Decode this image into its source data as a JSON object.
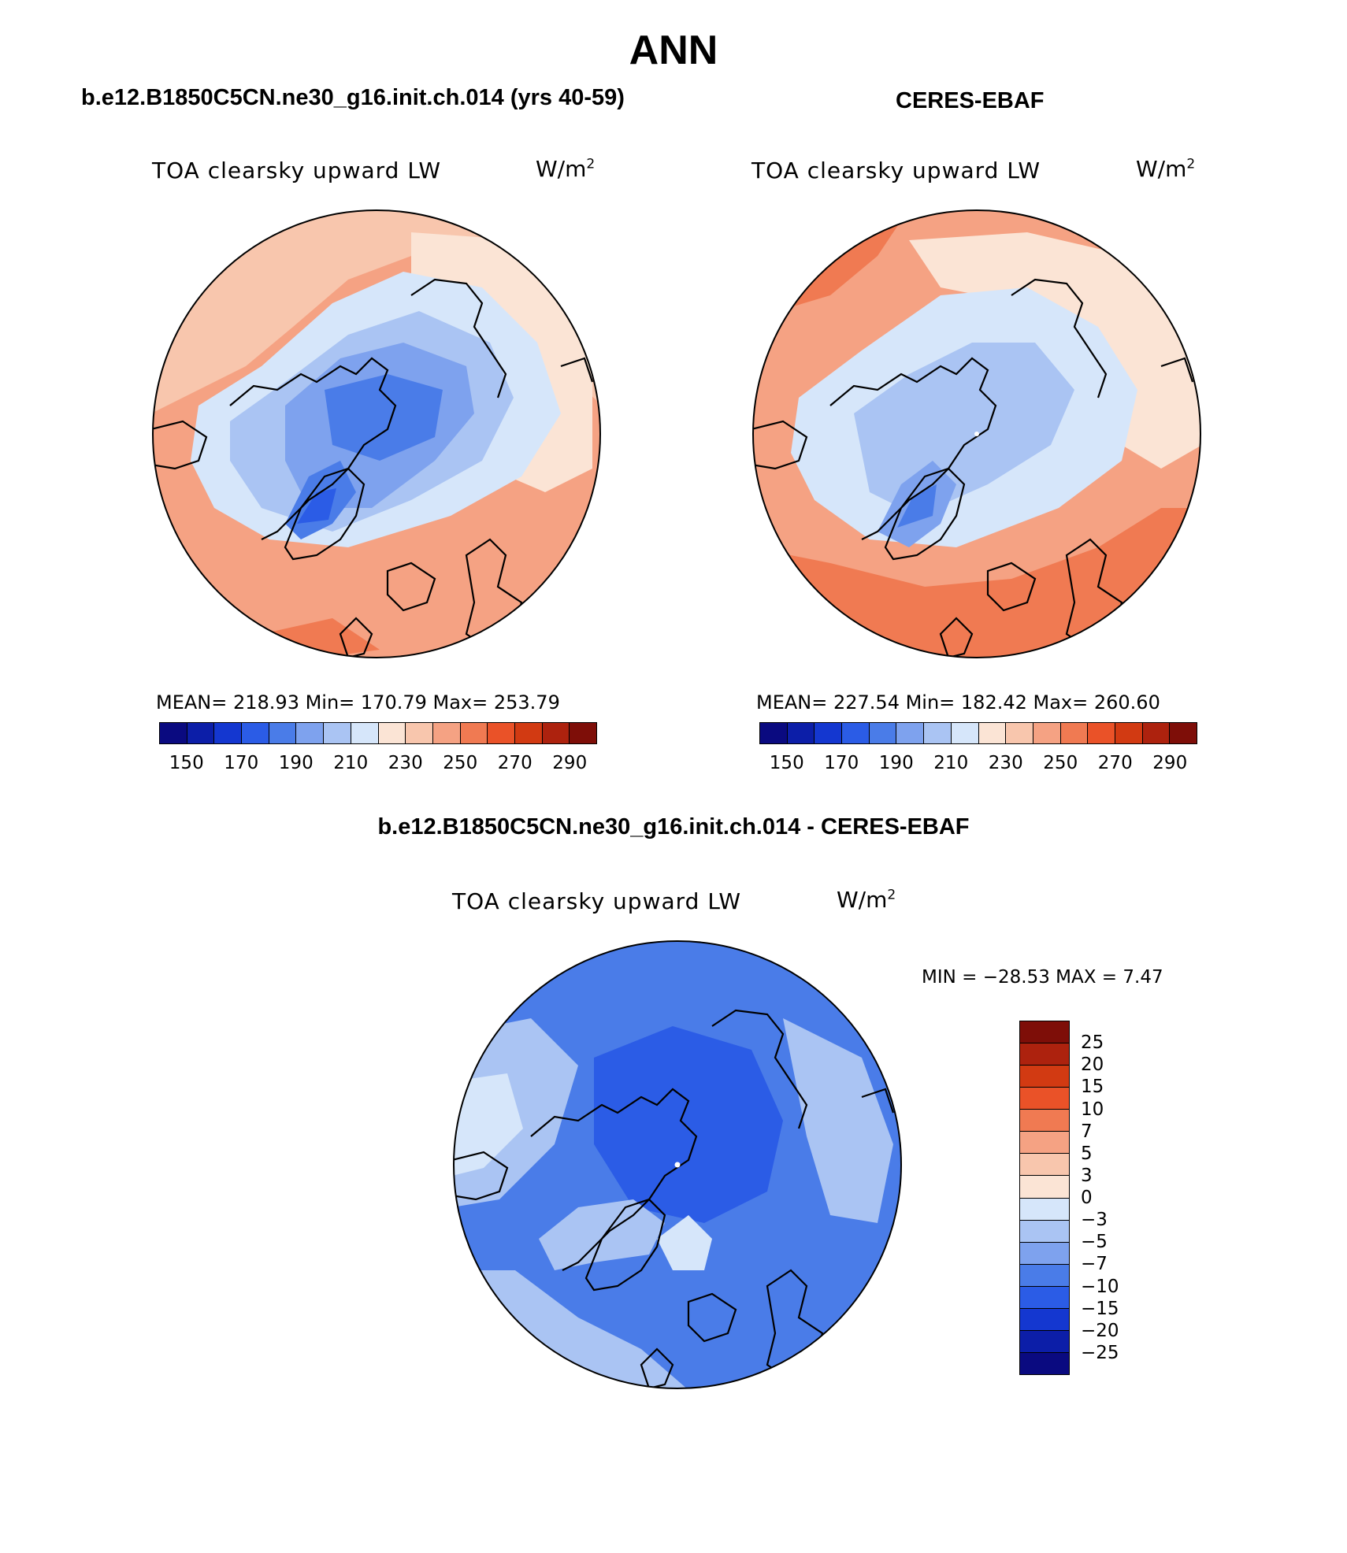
{
  "title": "ANN",
  "panels": [
    {
      "title": "b.e12.B1850C5CN.ne30_g16.init.ch.014 (yrs 40-59)",
      "variable": "TOA clearsky upward LW",
      "units": "W/m",
      "units_sup": "2",
      "stats": "MEAN= 218.93   Min= 170.79   Max= 253.79"
    },
    {
      "title": "CERES-EBAF",
      "variable": "TOA clearsky upward LW",
      "units": "W/m",
      "units_sup": "2",
      "stats": "MEAN= 227.54   Min= 182.42   Max= 260.60"
    }
  ],
  "diff_panel": {
    "title": "b.e12.B1850C5CN.ne30_g16.init.ch.014 - CERES-EBAF",
    "variable": "TOA clearsky upward LW",
    "units": "W/m",
    "units_sup": "2",
    "minmax": "MIN = −28.53 MAX =    7.47"
  },
  "colorbar_abs": {
    "colors": [
      "#0a0a80",
      "#0c1ea8",
      "#1437d0",
      "#2b5ce6",
      "#4a7ce8",
      "#7ea2ee",
      "#aac4f3",
      "#d6e6fa",
      "#fbe4d5",
      "#f8c6ad",
      "#f5a283",
      "#f07a52",
      "#ea5228",
      "#d23a12",
      "#ad220e",
      "#7e0e08"
    ],
    "labels": [
      "150",
      "170",
      "190",
      "210",
      "230",
      "250",
      "270",
      "290"
    ]
  },
  "colorbar_diff": {
    "colors": [
      "#7e0e08",
      "#ad220e",
      "#d23a12",
      "#ea5228",
      "#f07a52",
      "#f5a283",
      "#f8c6ad",
      "#fbe4d5",
      "#d6e6fa",
      "#aac4f3",
      "#7ea2ee",
      "#4a7ce8",
      "#2b5ce6",
      "#1437d0",
      "#0c1ea8",
      "#0a0a80"
    ],
    "labels": [
      "25",
      "20",
      "15",
      "10",
      "7",
      "5",
      "3",
      "0",
      "−3",
      "−5",
      "−7",
      "−10",
      "−15",
      "−20",
      "−25"
    ]
  },
  "map_colors": {
    "ocean_warm": "#f5a283",
    "ocean_warmest": "#f07a52",
    "light_warm": "#f8c6ad",
    "pale_warm": "#fbe4d5",
    "pale_cool": "#d6e6fa",
    "light_cool": "#aac4f3",
    "mid_cool": "#7ea2ee",
    "cool": "#4a7ce8",
    "deep_cool": "#2b5ce6",
    "diff_base": "#4a7ce8",
    "diff_core": "#2b5ce6",
    "diff_pale": "#aac4f3",
    "diff_light": "#d6e6fa"
  }
}
